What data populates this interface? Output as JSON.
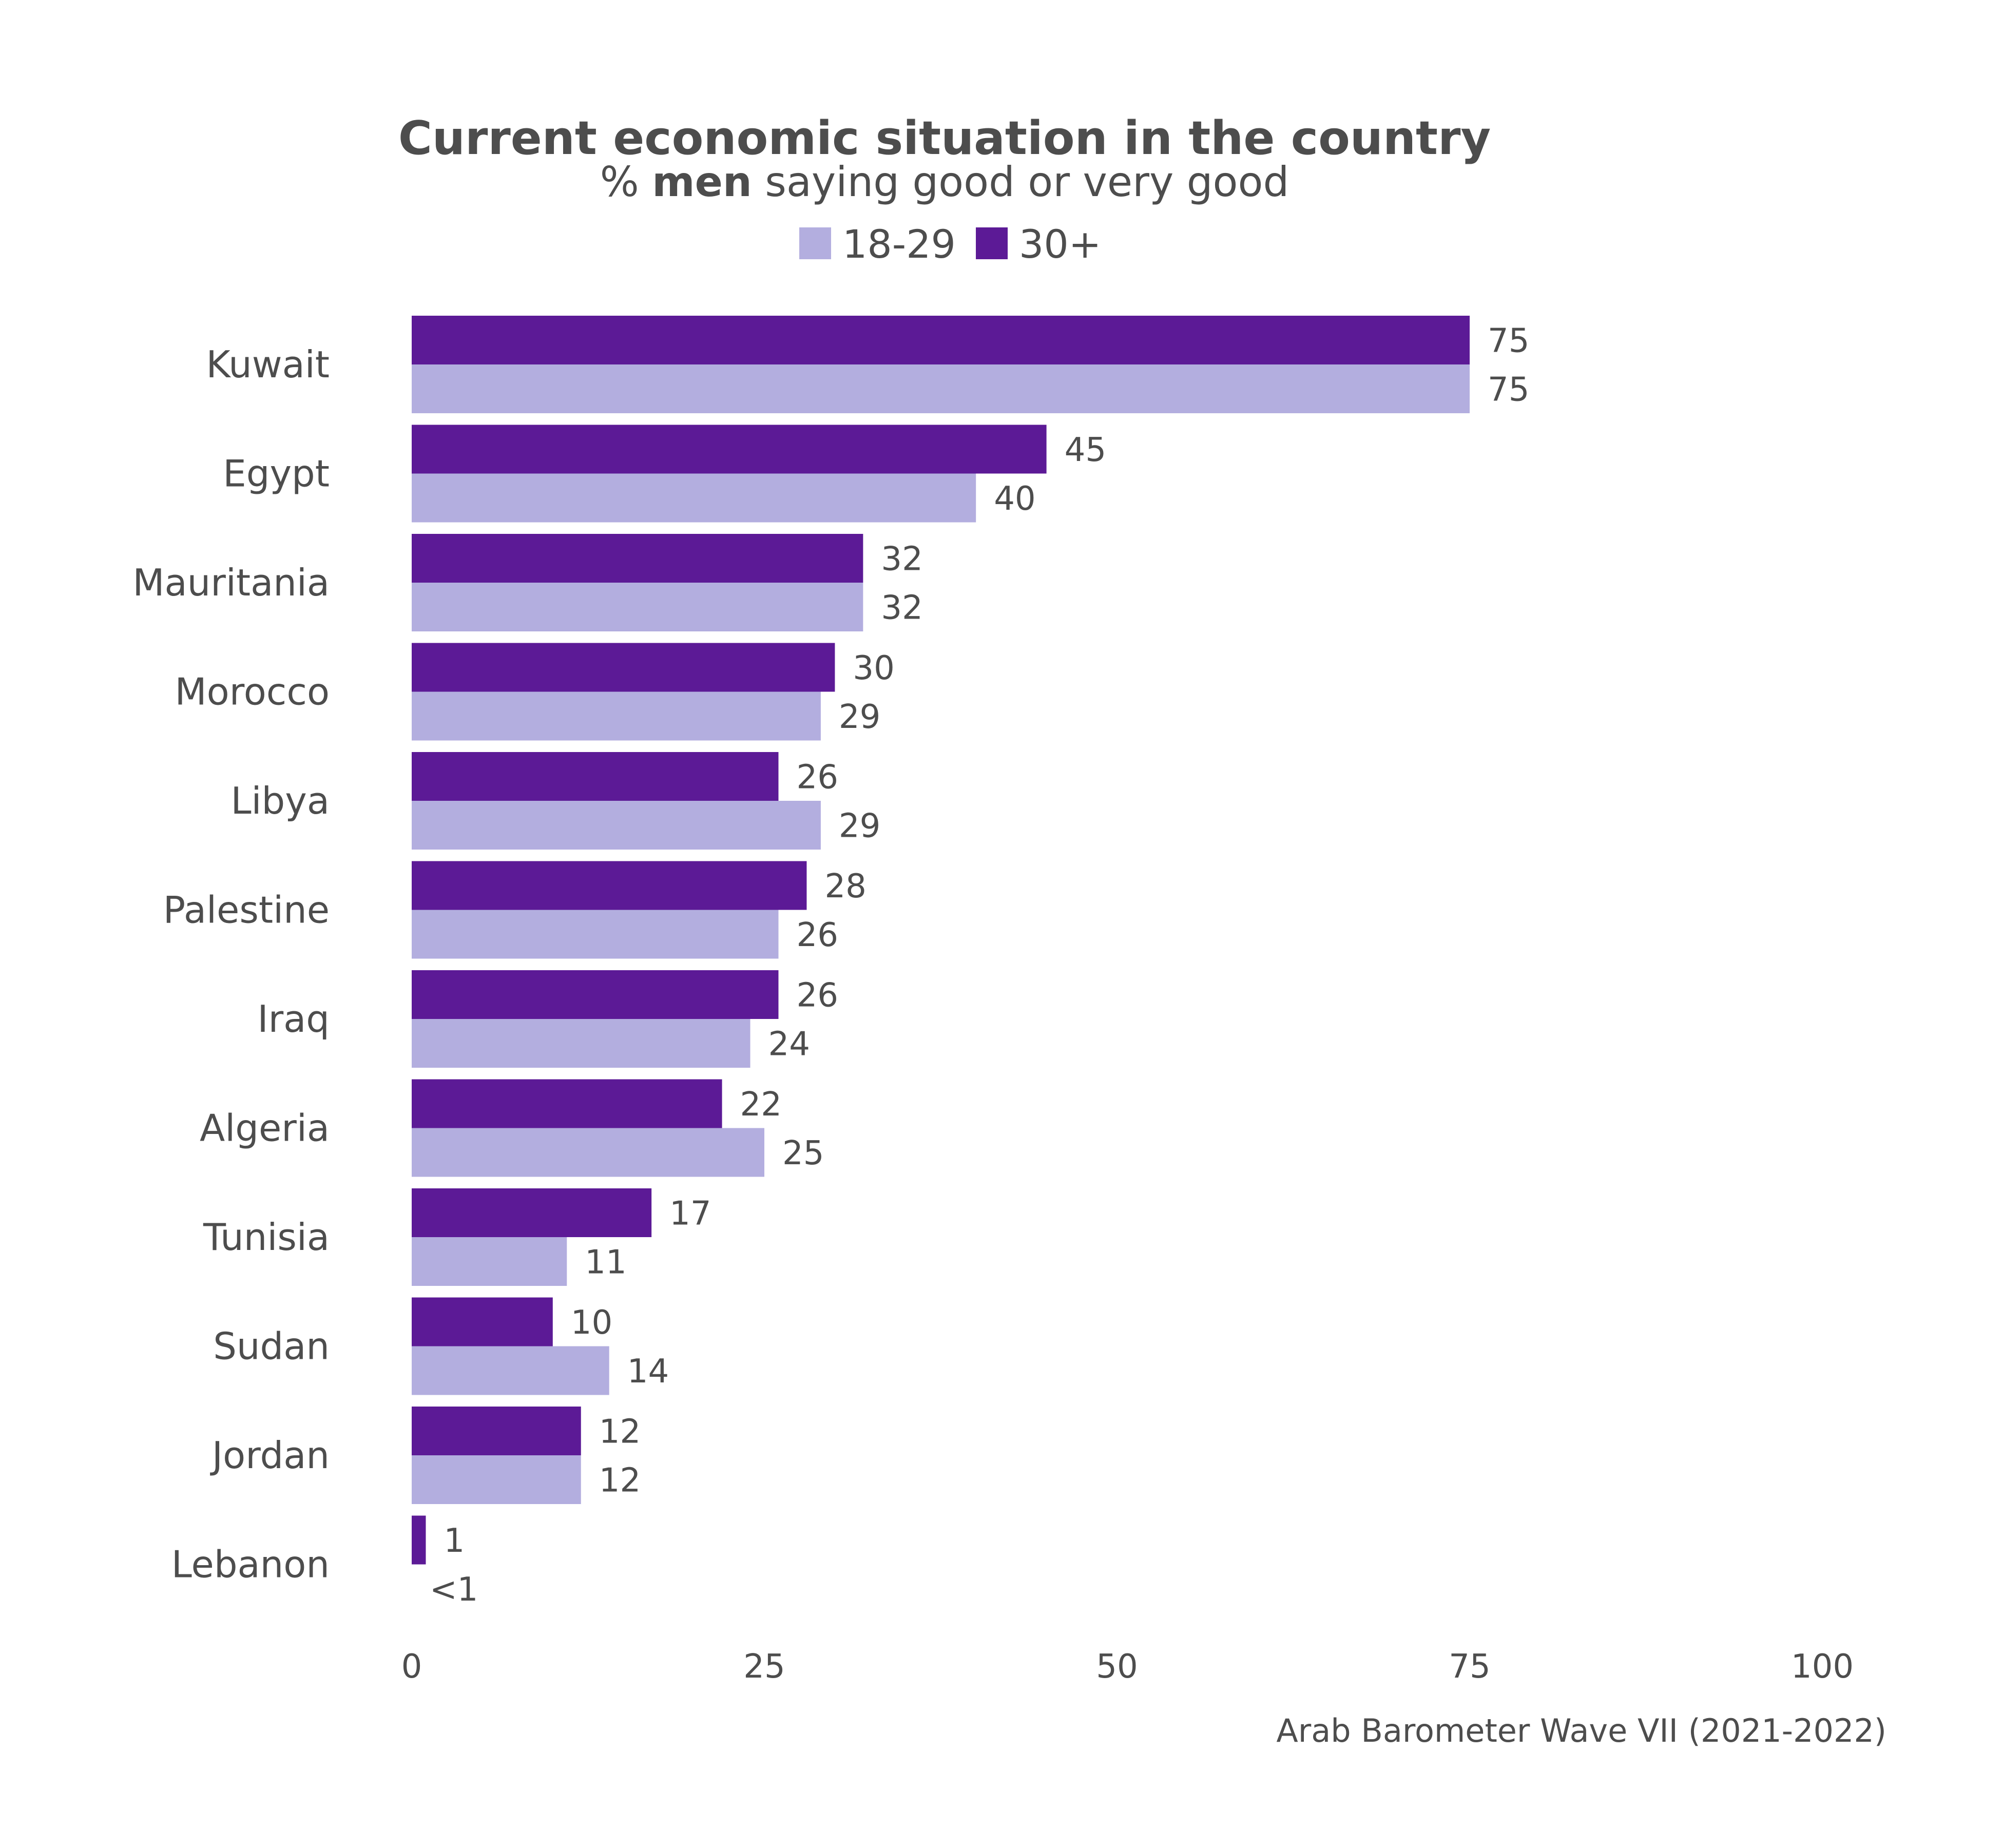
{
  "chart_data": {
    "type": "bar",
    "orientation": "horizontal",
    "title": "Current economic situation in the country",
    "subtitle": {
      "prefix": "% ",
      "emphasis": "men",
      "suffix": " saying good or very good"
    },
    "categories": [
      "Kuwait",
      "Egypt",
      "Mauritania",
      "Morocco",
      "Libya",
      "Palestine",
      "Iraq",
      "Algeria",
      "Tunisia",
      "Sudan",
      "Jordan",
      "Lebanon"
    ],
    "series": [
      {
        "name": "30+",
        "color": "#5c1a96",
        "values": [
          75,
          45,
          32,
          30,
          26,
          28,
          26,
          22,
          17,
          10,
          12,
          1
        ],
        "labels": [
          "75",
          "45",
          "32",
          "30",
          "26",
          "28",
          "26",
          "22",
          "17",
          "10",
          "12",
          "1"
        ]
      },
      {
        "name": "18-29",
        "color": "#b3aedf",
        "values": [
          75,
          40,
          32,
          29,
          29,
          26,
          24,
          25,
          11,
          14,
          12,
          0
        ],
        "labels": [
          "75",
          "40",
          "32",
          "29",
          "29",
          "26",
          "24",
          "25",
          "11",
          "14",
          "12",
          "<1"
        ]
      }
    ],
    "legend": {
      "placement": "top",
      "order": [
        "18-29",
        "30+"
      ]
    },
    "xlim": [
      0,
      100
    ],
    "xticks": [
      "0",
      "25",
      "50",
      "75",
      "100"
    ],
    "grid": false,
    "caption": "Arab Barometer Wave VII (2021-2022)"
  }
}
